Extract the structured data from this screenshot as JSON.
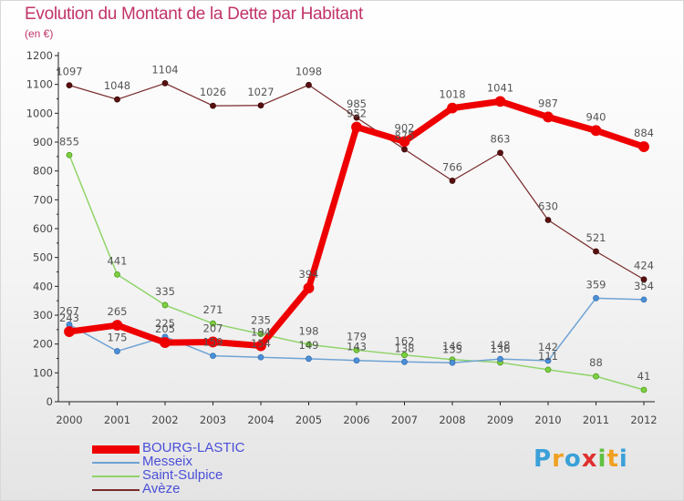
{
  "title": "Evolution du Montant de la Dette par Habitant",
  "subtitle": "(en €)",
  "brand": {
    "letters": [
      "P",
      "r",
      "o",
      "x",
      "i",
      "t",
      "i"
    ],
    "colors": [
      "#3aa0d8",
      "#f0a020",
      "#3aa0d8",
      "#e03030",
      "#60c040",
      "#f0a020",
      "#3aa0d8"
    ]
  },
  "chart_data": {
    "type": "line",
    "title": "Evolution du Montant de la Dette par Habitant",
    "subtitle": "(en €)",
    "xlabel": "",
    "ylabel": "",
    "x": [
      2000,
      2001,
      2002,
      2003,
      2004,
      2005,
      2006,
      2007,
      2008,
      2009,
      2010,
      2011,
      2012
    ],
    "x_labels": [
      "2000",
      "2001",
      "2002",
      "2003",
      "2004",
      "2005",
      "2006",
      "2007",
      "2008",
      "2009",
      "2010",
      "2011",
      "2012"
    ],
    "ylim": [
      0,
      1200
    ],
    "y_ticks": [
      0,
      100,
      200,
      300,
      400,
      500,
      600,
      700,
      800,
      900,
      1000,
      1100,
      1200
    ],
    "grid": false,
    "legend_position": "bottom-left",
    "series": [
      {
        "name": "BOURG-LASTIC",
        "color": "#ee0000",
        "values": [
          243,
          265,
          205,
          207,
          194,
          394,
          952,
          902,
          1018,
          1041,
          987,
          940,
          884
        ]
      },
      {
        "name": "Messeix",
        "color": "#6fa3d4",
        "values": [
          267,
          175,
          225,
          159,
          154,
          149,
          143,
          138,
          135,
          148,
          142,
          359,
          354
        ]
      },
      {
        "name": "Saint-Sulpice",
        "color": "#8fd46a",
        "values": [
          855,
          441,
          335,
          271,
          235,
          198,
          179,
          162,
          146,
          136,
          111,
          88,
          41
        ]
      },
      {
        "name": "Avèze",
        "color": "#7a2a2a",
        "values": [
          1097,
          1048,
          1104,
          1026,
          1027,
          1098,
          985,
          875,
          766,
          863,
          630,
          521,
          424
        ]
      }
    ]
  }
}
